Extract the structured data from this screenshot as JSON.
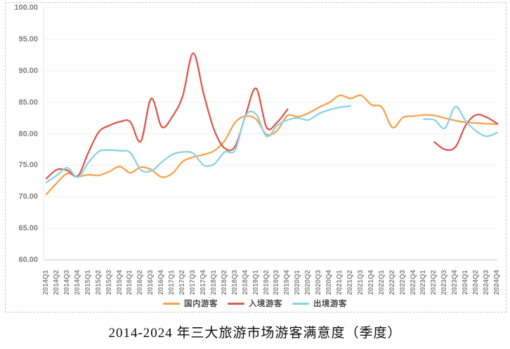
{
  "title": "2014-2024 年三大旅游市场游客满意度（季度）",
  "legend": [
    {
      "label": "国内游客",
      "color": "#f9a24b"
    },
    {
      "label": "入境游客",
      "color": "#e0574c"
    },
    {
      "label": "出境游客",
      "color": "#8ad3e6"
    }
  ],
  "y_axis": {
    "tick_labels": [
      "100.00",
      "95.00",
      "90.00",
      "85.00",
      "80.00",
      "75.00",
      "70.00",
      "65.00",
      "60.00"
    ]
  },
  "chart_data": {
    "type": "line",
    "title": "2014-2024 年三大旅游市场游客满意度（季度）",
    "xlabel": "",
    "ylabel": "",
    "ylim": [
      60,
      100
    ],
    "ytick_step": 5,
    "grid": true,
    "legend_position": "bottom",
    "categories": [
      "2014Q1",
      "2014Q2",
      "2014Q3",
      "2014Q4",
      "2015Q1",
      "2015Q2",
      "2015Q3",
      "2015Q4",
      "2016Q1",
      "2016Q2",
      "2016Q3",
      "2016Q4",
      "2017Q1",
      "2017Q2",
      "2017Q3",
      "2017Q4",
      "2018Q1",
      "2018Q2",
      "2018Q3",
      "2018Q4",
      "2019Q1",
      "2019Q2",
      "2019Q3",
      "2019Q4",
      "2020Q1",
      "2020Q2",
      "2020Q3",
      "2020Q4",
      "2021Q1",
      "2021Q2",
      "2021Q3",
      "2021Q4",
      "2022Q1",
      "2022Q2",
      "2022Q3",
      "2022Q4",
      "2023Q1",
      "2023Q2",
      "2023Q3",
      "2023Q4",
      "2024Q1",
      "2024Q2",
      "2024Q3",
      "2024Q4"
    ],
    "series": [
      {
        "name": "国内游客",
        "color": "#f9a24b",
        "values": [
          70.4,
          72.2,
          73.7,
          73.2,
          73.5,
          73.4,
          74.0,
          74.8,
          73.8,
          74.7,
          74.3,
          73.1,
          73.7,
          75.6,
          76.3,
          76.7,
          77.3,
          78.9,
          81.8,
          82.8,
          82.3,
          79.9,
          80.5,
          82.9,
          82.7,
          83.3,
          84.2,
          85.0,
          86.1,
          85.6,
          86.1,
          84.6,
          84.2,
          81.0,
          82.6,
          82.8,
          83.0,
          82.9,
          82.5,
          82.1,
          81.8,
          81.7,
          81.6,
          81.5
        ]
      },
      {
        "name": "入境游客",
        "color": "#e0574c",
        "values": [
          72.9,
          74.3,
          74.2,
          73.3,
          77.0,
          80.3,
          81.3,
          81.9,
          81.9,
          78.8,
          85.6,
          81.1,
          82.7,
          86.0,
          92.8,
          86.3,
          80.6,
          77.7,
          78.0,
          83.0,
          87.2,
          81.0,
          81.8,
          83.9,
          null,
          null,
          null,
          null,
          null,
          null,
          null,
          null,
          null,
          null,
          null,
          null,
          null,
          78.7,
          77.5,
          77.9,
          81.4,
          83.0,
          82.6,
          81.6
        ]
      },
      {
        "name": "出境游客",
        "color": "#8ad3e6",
        "values": [
          72.3,
          73.4,
          74.6,
          73.1,
          75.4,
          77.2,
          77.4,
          77.3,
          77.0,
          74.3,
          74.1,
          75.5,
          76.7,
          77.1,
          76.9,
          75.0,
          75.2,
          77.1,
          77.4,
          82.9,
          83.1,
          79.6,
          81.3,
          82.2,
          82.5,
          82.2,
          83.2,
          83.8,
          84.2,
          84.4,
          null,
          null,
          null,
          null,
          null,
          null,
          82.3,
          82.2,
          80.9,
          84.3,
          82.0,
          80.4,
          79.6,
          80.2
        ]
      }
    ]
  },
  "style": {
    "grid_color": "#f0f0f0",
    "axis_color": "#c9c9c9",
    "plot_edge_color": "#e8e8e8"
  }
}
